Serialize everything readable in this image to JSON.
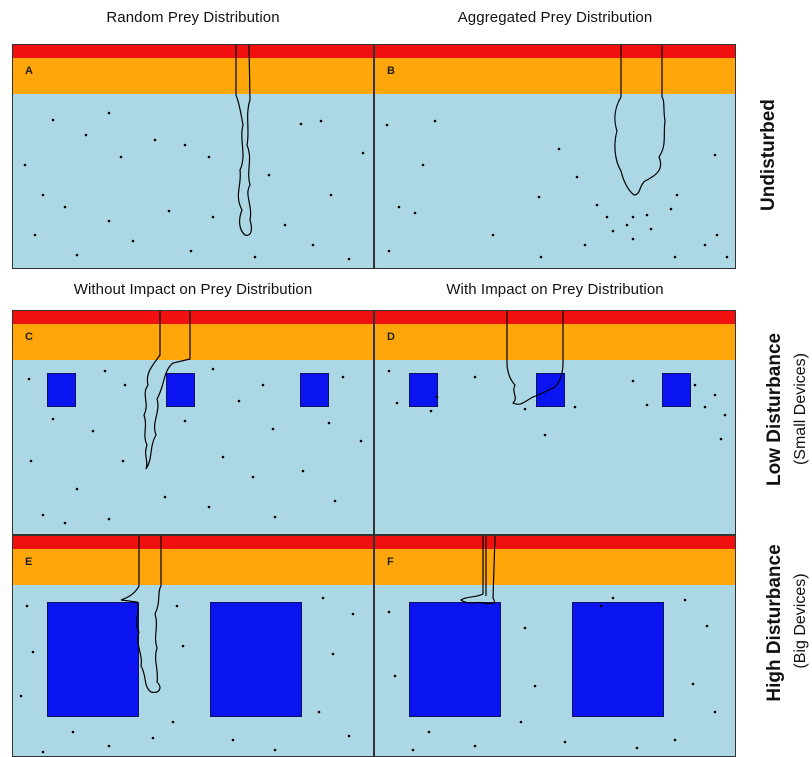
{
  "column_titles_top": {
    "left": "Random Prey Distribution",
    "right": "Aggregated Prey Distribution"
  },
  "column_titles_mid": {
    "left": "Without Impact on Prey Distribution",
    "right": "With Impact on Prey Distribution"
  },
  "row_labels": {
    "undisturbed": "Undisturbed",
    "low": "Low Disturbance",
    "low_sub": "(Small Devices)",
    "high": "High Disturbance",
    "high_sub": "(Big Devices)"
  },
  "panels": {
    "A": "A",
    "B": "B",
    "C": "C",
    "D": "D",
    "E": "E",
    "F": "F"
  },
  "colors": {
    "water": "#acd8e5",
    "surface_red": "#f01010",
    "surface_orange": "#ffa60a",
    "device": "#0a14f0",
    "prey": "#000000"
  }
}
